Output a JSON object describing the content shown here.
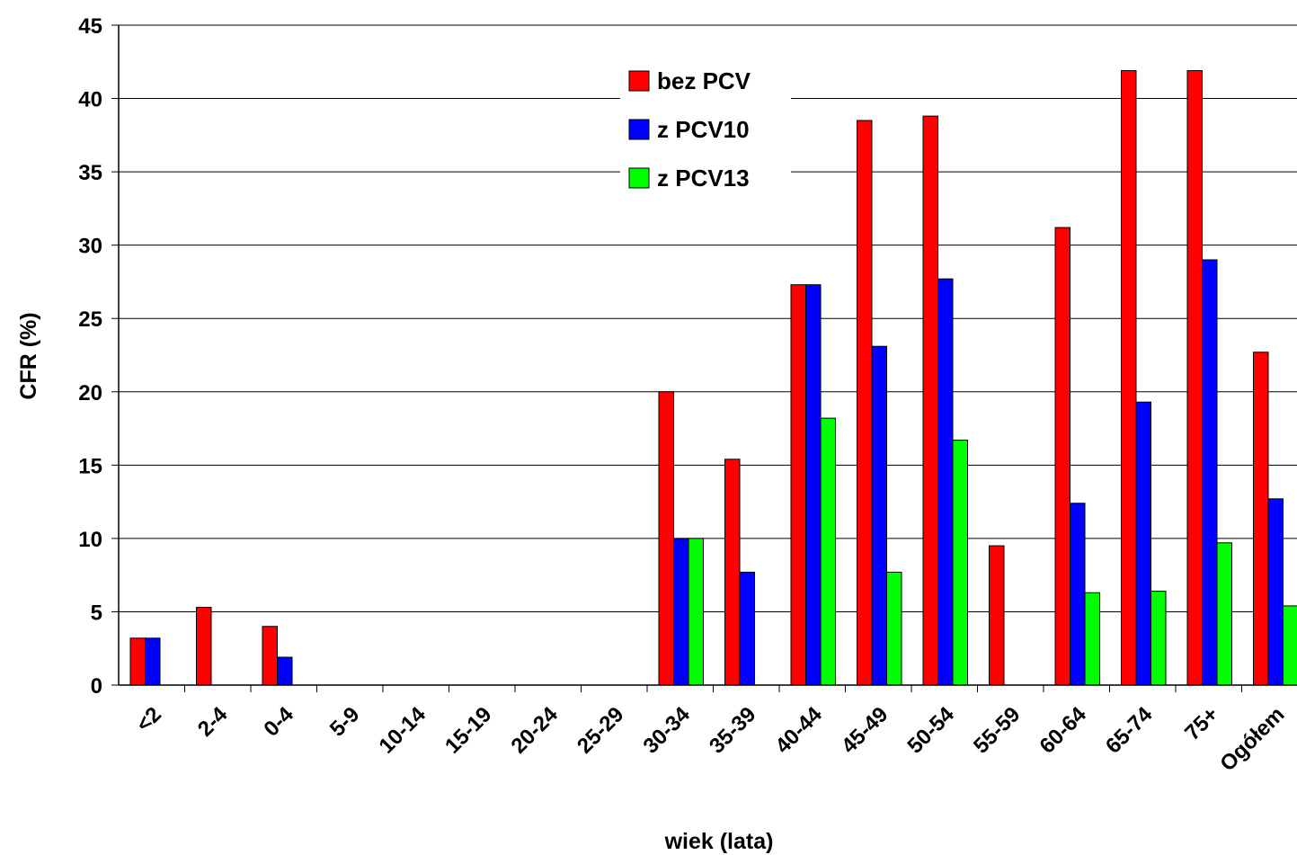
{
  "chart_data": {
    "type": "bar",
    "title": "",
    "xlabel": "wiek (lata)",
    "ylabel": "CFR (%)",
    "ylim": [
      0,
      45
    ],
    "yticks": [
      0,
      5,
      10,
      15,
      20,
      25,
      30,
      35,
      40,
      45
    ],
    "grid": true,
    "legend_position": "top-center",
    "categories": [
      "<2",
      "2-4",
      "0-4",
      "5-9",
      "10-14",
      "15-19",
      "20-24",
      "25-29",
      "30-34",
      "35-39",
      "40-44",
      "45-49",
      "50-54",
      "55-59",
      "60-64",
      "65-74",
      "75+",
      "Ogółem"
    ],
    "series": [
      {
        "name": "bez PCV",
        "color": "#ff0000",
        "values": [
          3.2,
          5.3,
          4.0,
          0,
          0,
          0,
          0,
          0,
          20.0,
          15.4,
          27.3,
          38.5,
          38.8,
          9.5,
          31.2,
          41.9,
          41.9,
          22.7
        ]
      },
      {
        "name": "z PCV10",
        "color": "#0000ff",
        "values": [
          3.2,
          0,
          1.9,
          0,
          0,
          0,
          0,
          0,
          10.0,
          7.7,
          27.3,
          23.1,
          27.7,
          0,
          12.4,
          19.3,
          29.0,
          12.7
        ]
      },
      {
        "name": "z PCV13",
        "color": "#00ff00",
        "values": [
          0,
          0,
          0,
          0,
          0,
          0,
          0,
          0,
          10.0,
          0,
          18.2,
          7.7,
          16.7,
          0,
          6.3,
          6.4,
          9.7,
          5.4
        ]
      }
    ]
  }
}
